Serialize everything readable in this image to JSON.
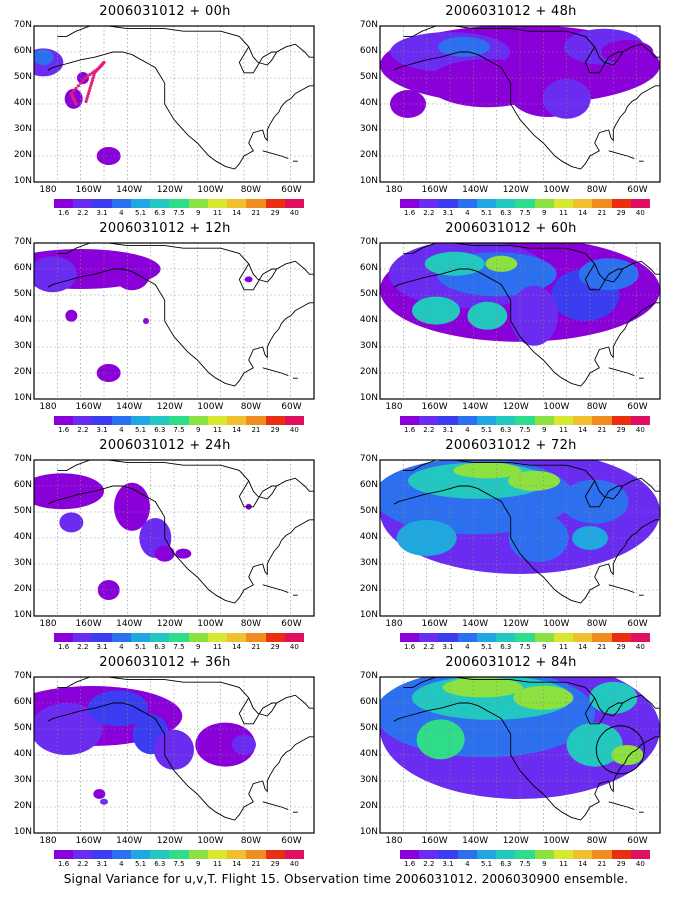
{
  "figure": {
    "caption": "Signal Variance for u,v,T. Flight 15. Observation time 2006031012. 2006030900 ensemble."
  },
  "axes": {
    "lat_labels": [
      "70N",
      "60N",
      "50N",
      "40N",
      "30N",
      "20N",
      "10N"
    ],
    "lon_labels": [
      "180",
      "160W",
      "140W",
      "120W",
      "100W",
      "80W",
      "60W"
    ]
  },
  "colorbar": {
    "labels": [
      "1.6",
      "2.2",
      "3.1",
      "4",
      "5.1",
      "6.3",
      "7.5",
      "9",
      "11",
      "14",
      "21",
      "29",
      "40"
    ],
    "colors": [
      "#8a00d8",
      "#6a2cf0",
      "#3a3ef0",
      "#2c70f0",
      "#1fa8e0",
      "#22c8c0",
      "#2edc8a",
      "#8ce040",
      "#d8e830",
      "#f0c030",
      "#f08c20",
      "#e83010",
      "#e01060"
    ]
  },
  "panels": [
    {
      "title": "2006031012 + 00h",
      "level": 0
    },
    {
      "title": "2006031012 + 48h",
      "level": 4
    },
    {
      "title": "2006031012 + 12h",
      "level": 1
    },
    {
      "title": "2006031012 + 60h",
      "level": 5
    },
    {
      "title": "2006031012 + 24h",
      "level": 2
    },
    {
      "title": "2006031012 + 72h",
      "level": 6
    },
    {
      "title": "2006031012 + 36h",
      "level": 3
    },
    {
      "title": "2006031012 + 84h",
      "level": 7
    }
  ]
}
